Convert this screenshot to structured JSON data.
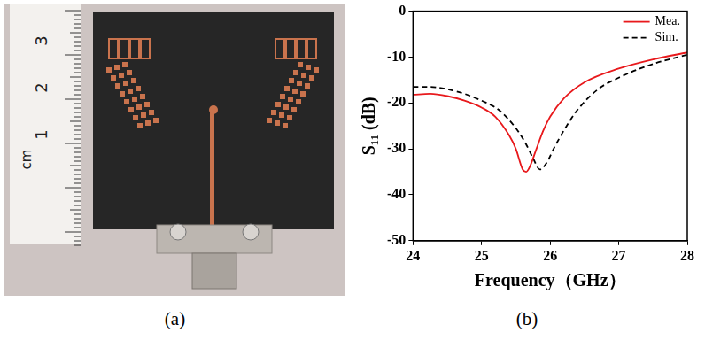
{
  "panels": {
    "a": {
      "label": "(a)",
      "photo": {
        "ruler_labels": [
          "3",
          "2",
          "1"
        ],
        "ruler_unit": "cm"
      }
    },
    "b": {
      "label": "(b)"
    }
  },
  "chart_data": {
    "type": "line",
    "x_label": "Frequency（GHz）",
    "y_label": "S₁₁ (dB)",
    "xlim": [
      24,
      28
    ],
    "xticks": [
      24,
      25,
      26,
      27,
      28
    ],
    "ylim": [
      -50,
      0
    ],
    "yticks": [
      -50,
      -40,
      -30,
      -20,
      -10,
      0
    ],
    "grid": false,
    "legend": "upper right",
    "series": [
      {
        "name": "Mea.",
        "color": "#e8191c",
        "line_style": "solid",
        "x": [
          24,
          24.25,
          24.5,
          24.75,
          25,
          25.2,
          25.4,
          25.5,
          25.6,
          25.65,
          25.7,
          25.8,
          25.9,
          26,
          26.2,
          26.5,
          27,
          27.5,
          28
        ],
        "values": [
          -18.2,
          -18,
          -18.5,
          -19.5,
          -21,
          -23,
          -27,
          -30,
          -34.5,
          -35,
          -34,
          -30,
          -26,
          -23,
          -19,
          -15.5,
          -12.5,
          -10.5,
          -9
        ]
      },
      {
        "name": "Sim.",
        "color": "#000000",
        "line_style": "dashed",
        "x": [
          24,
          24.25,
          24.5,
          24.75,
          25,
          25.25,
          25.5,
          25.65,
          25.75,
          25.85,
          25.95,
          26.05,
          26.2,
          26.4,
          26.7,
          27,
          27.5,
          28
        ],
        "values": [
          -16.5,
          -16.5,
          -17,
          -18,
          -19.5,
          -21.5,
          -25.5,
          -29,
          -32,
          -34.5,
          -33,
          -30,
          -26,
          -21.5,
          -17,
          -14.5,
          -11.5,
          -9.5
        ]
      }
    ]
  }
}
